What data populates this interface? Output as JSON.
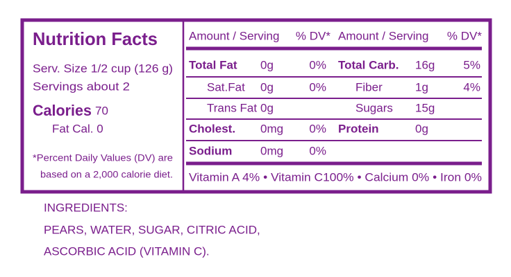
{
  "label": {
    "title": "Nutrition Facts",
    "serving_size": "Serv. Size 1/2 cup (126 g)",
    "servings": "Servings about 2",
    "calories_label": "Calories",
    "calories_value": 70,
    "fat_cal": "Fat Cal. 0",
    "footnote": [
      "*Percent Daily Values (DV) are",
      "based on a 2,000 calorie diet."
    ],
    "header": [
      "Amount / Serving",
      "% DV*",
      "Amount / Serving",
      "% DV*"
    ],
    "rows": [
      [
        "Total Fat",
        "0g",
        "0%",
        "Total Carb.",
        "16g",
        "5%"
      ],
      [
        "Sat.Fat",
        "0g",
        "0%",
        "Fiber",
        "1g",
        "4%"
      ],
      [
        "Trans Fat",
        "0g",
        null,
        "Sugars",
        "15g",
        null
      ],
      [
        "Cholest.",
        "0mg",
        "0%",
        "Protein",
        "0g",
        null
      ],
      [
        "Sodium",
        "0mg",
        "0%",
        null,
        null,
        null
      ]
    ],
    "vitamins": "Vitamin A 4% • Vitamin C100% • Calcium 0% • Iron 0%"
  },
  "ingredients": {
    "heading": "INGREDIENTS:",
    "lines": [
      "PEARS, WATER, SUGAR, CITRIC ACID,",
      "ASCORBIC ACID (VITAMIN C)."
    ]
  }
}
